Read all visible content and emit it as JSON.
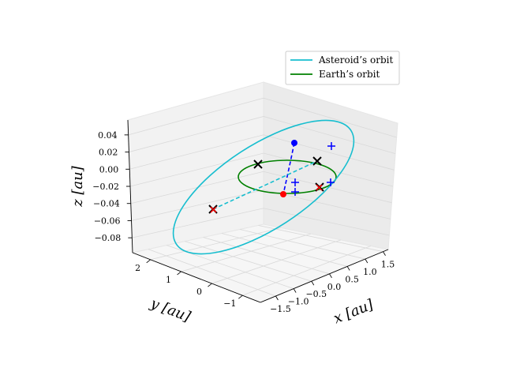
{
  "chart_data": {
    "type": "line",
    "projection": "3d",
    "axes": {
      "x": {
        "label": "x [au]",
        "ticks": [
          "−1.5",
          "−1.0",
          "−0.5",
          "0.0",
          "0.5",
          "1.0",
          "1.5"
        ]
      },
      "y": {
        "label": "y [au]",
        "ticks": [
          "−1",
          "0",
          "1",
          "2"
        ]
      },
      "z": {
        "label": "z [au]",
        "ticks": [
          "0.04",
          "0.02",
          "0.00",
          "−0.02",
          "−0.04",
          "−0.06",
          "−0.08"
        ]
      }
    },
    "legend": {
      "placement": "top-right",
      "entries": [
        {
          "label": "Asteroid’s orbit",
          "color": "#17becf"
        },
        {
          "label": "Earth’s orbit",
          "color": "#008000"
        }
      ]
    },
    "series": [
      {
        "name": "Asteroid’s orbit",
        "color": "#17becf",
        "style": "solid closed orbit (ellipse)"
      },
      {
        "name": "Earth’s orbit",
        "color": "#008000",
        "style": "solid closed orbit (circle)"
      }
    ],
    "markers": [
      {
        "kind": "dot",
        "color": "#0000ff",
        "note": "asteroid position"
      },
      {
        "kind": "dot",
        "color": "#ff0000",
        "note": "Earth position"
      },
      {
        "kind": "x",
        "color": "#000000",
        "count": 4
      },
      {
        "kind": "x",
        "color": "#ff0000",
        "count": 2
      },
      {
        "kind": "plus",
        "color": "#0000ff",
        "count": 4
      }
    ],
    "connectors": [
      {
        "color": "#0000ff",
        "style": "dashed",
        "between": "asteroid position and Earth position"
      },
      {
        "color": "#17becf",
        "style": "dashed",
        "between": "line of nodes"
      }
    ],
    "grid": true
  }
}
